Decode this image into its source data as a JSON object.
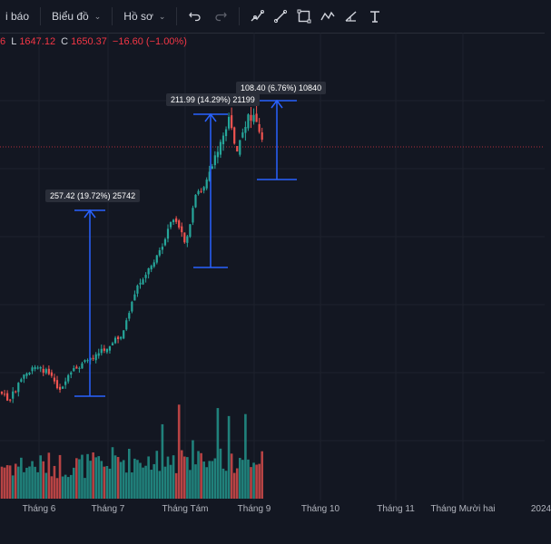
{
  "toolbar": {
    "indicators_label": "i báo",
    "chart_label": "Biểu đồ",
    "profile_label": "Hồ sơ",
    "tools": [
      "brush-tool-icon",
      "trend-line-icon",
      "rectangle-icon",
      "path-icon",
      "fib-icon",
      "text-icon"
    ]
  },
  "ohlc": {
    "prefix": "6",
    "low_key": "L",
    "low": "1647.12",
    "close_key": "C",
    "close": "1650.37",
    "change": "−16.60 (−1.00%)"
  },
  "colors": {
    "background": "#131722",
    "up": "#26a69a",
    "down": "#ef5350",
    "measure": "#2962ff",
    "price_line": "#f23645"
  },
  "measurements": [
    {
      "label": "257.42 (19.72%) 25742"
    },
    {
      "label": "211.99 (14.29%) 21199"
    },
    {
      "label": "108.40 (6.76%) 10840"
    }
  ],
  "time_axis": [
    "Tháng 6",
    "Tháng 7",
    "Tháng Tám",
    "Tháng 9",
    "Tháng 10",
    "Tháng 11",
    "Tháng Mười hai",
    "2024"
  ]
}
